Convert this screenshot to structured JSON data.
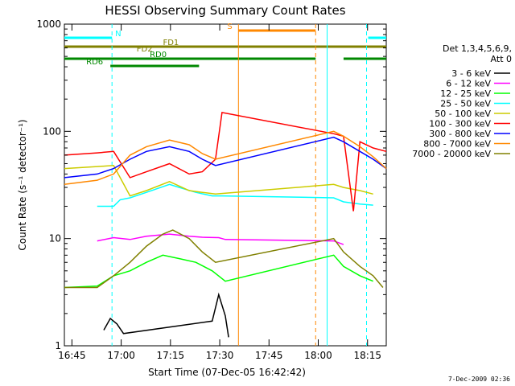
{
  "footer": {
    "timestamp": "7-Dec-2009 02:36"
  },
  "chart_data": {
    "type": "line",
    "title": "HESSI Observing Summary Count Rates",
    "xlabel": "Start Time (07-Dec-05 16:42:42)",
    "ylabel": "Count Rate (s⁻¹ detector⁻¹)",
    "x_unit": "minutes after 16:42:42 UT",
    "xlim": [
      0,
      98
    ],
    "ylim": [
      1,
      1000
    ],
    "y_scale": "log",
    "grid": false,
    "x_ticks": [
      {
        "pos": 2.3,
        "label": "16:45"
      },
      {
        "pos": 17.3,
        "label": "17:00"
      },
      {
        "pos": 32.3,
        "label": "17:15"
      },
      {
        "pos": 47.3,
        "label": "17:30"
      },
      {
        "pos": 62.3,
        "label": "17:45"
      },
      {
        "pos": 77.3,
        "label": "18:00"
      },
      {
        "pos": 92.3,
        "label": "18:15"
      }
    ],
    "y_ticks": [
      {
        "pos": 1,
        "label": "1"
      },
      {
        "pos": 10,
        "label": "10"
      },
      {
        "pos": 100,
        "label": "100"
      },
      {
        "pos": 1000,
        "label": "1000"
      }
    ],
    "legend": {
      "placement": "right",
      "title_lines": [
        "Det 1,3,4,5,6,9,",
        "Att 0"
      ]
    },
    "series": [
      {
        "name": "3 - 6 keV",
        "color": "#000000",
        "data": [
          [
            12,
            1.4
          ],
          [
            14,
            1.8
          ],
          [
            16,
            1.6
          ],
          [
            18,
            1.3
          ],
          [
            45,
            1.7
          ],
          [
            47,
            3.0
          ],
          [
            49,
            1.9
          ],
          [
            50,
            1.2
          ]
        ]
      },
      {
        "name": "6 - 12 keV",
        "color": "#ff00ff",
        "data": [
          [
            10,
            9.5
          ],
          [
            15,
            10.2
          ],
          [
            20,
            9.8
          ],
          [
            25,
            10.5
          ],
          [
            32,
            11.0
          ],
          [
            38,
            10.5
          ],
          [
            42,
            10.3
          ],
          [
            47,
            10.2
          ],
          [
            49,
            9.8
          ],
          [
            82,
            9.5
          ],
          [
            85,
            8.8
          ]
        ]
      },
      {
        "name": "12 - 25 keV",
        "color": "#00ff00",
        "data": [
          [
            0,
            3.5
          ],
          [
            10,
            3.6
          ],
          [
            15,
            4.5
          ],
          [
            20,
            5.0
          ],
          [
            25,
            6.0
          ],
          [
            30,
            7.0
          ],
          [
            35,
            6.5
          ],
          [
            40,
            6.0
          ],
          [
            45,
            5.0
          ],
          [
            49,
            4.0
          ],
          [
            82,
            7.0
          ],
          [
            85,
            5.5
          ],
          [
            90,
            4.5
          ],
          [
            94,
            4.0
          ]
        ]
      },
      {
        "name": "25 - 50 keV",
        "color": "#00ffff",
        "data": [
          [
            10,
            20.0
          ],
          [
            15,
            20.0
          ],
          [
            17,
            23.0
          ],
          [
            20,
            24.0
          ],
          [
            25,
            27.0
          ],
          [
            32,
            32.0
          ],
          [
            35,
            30.0
          ],
          [
            40,
            27.0
          ],
          [
            45,
            25.0
          ],
          [
            48,
            25.0
          ],
          [
            82,
            24.0
          ],
          [
            85,
            22.0
          ],
          [
            90,
            21.0
          ],
          [
            94,
            20.5
          ]
        ]
      },
      {
        "name": "50 - 100 keV",
        "color": "#cccc00",
        "data": [
          [
            0,
            45.0
          ],
          [
            10,
            47.0
          ],
          [
            15,
            48.0
          ],
          [
            20,
            25.0
          ],
          [
            25,
            28.0
          ],
          [
            32,
            34.0
          ],
          [
            38,
            28.0
          ],
          [
            42,
            27.0
          ],
          [
            46,
            26.0
          ],
          [
            82,
            32.0
          ],
          [
            85,
            30.0
          ],
          [
            90,
            28.0
          ],
          [
            94,
            26.0
          ]
        ]
      },
      {
        "name": "100 - 300 keV",
        "color": "#ff0000",
        "data": [
          [
            0,
            60.0
          ],
          [
            10,
            63.0
          ],
          [
            15,
            65.0
          ],
          [
            20,
            37.0
          ],
          [
            25,
            42.0
          ],
          [
            32,
            50.0
          ],
          [
            38,
            40.0
          ],
          [
            42,
            42.0
          ],
          [
            46,
            55.0
          ],
          [
            48,
            150.0
          ],
          [
            82,
            95.0
          ],
          [
            85,
            90.0
          ],
          [
            88,
            18.0
          ],
          [
            90,
            80.0
          ],
          [
            94,
            70.0
          ],
          [
            98,
            65.0
          ]
        ]
      },
      {
        "name": "300 - 800 keV",
        "color": "#0000ff",
        "data": [
          [
            0,
            37.0
          ],
          [
            10,
            40.0
          ],
          [
            15,
            45.0
          ],
          [
            20,
            55.0
          ],
          [
            25,
            65.0
          ],
          [
            32,
            72.0
          ],
          [
            38,
            65.0
          ],
          [
            42,
            55.0
          ],
          [
            46,
            48.0
          ],
          [
            82,
            88.0
          ],
          [
            85,
            80.0
          ],
          [
            90,
            65.0
          ],
          [
            94,
            55.0
          ],
          [
            98,
            45.0
          ]
        ]
      },
      {
        "name": "800 - 7000 keV",
        "color": "#ff8800",
        "data": [
          [
            0,
            32.0
          ],
          [
            10,
            35.0
          ],
          [
            15,
            40.0
          ],
          [
            20,
            60.0
          ],
          [
            25,
            72.0
          ],
          [
            32,
            83.0
          ],
          [
            38,
            75.0
          ],
          [
            42,
            62.0
          ],
          [
            46,
            55.0
          ],
          [
            82,
            100.0
          ],
          [
            85,
            90.0
          ],
          [
            90,
            72.0
          ],
          [
            94,
            58.0
          ],
          [
            98,
            45.0
          ]
        ]
      },
      {
        "name": "7000 - 20000 keV",
        "color": "#808000",
        "data": [
          [
            0,
            3.5
          ],
          [
            10,
            3.5
          ],
          [
            15,
            4.5
          ],
          [
            20,
            6.0
          ],
          [
            25,
            8.5
          ],
          [
            30,
            11.0
          ],
          [
            33,
            12.0
          ],
          [
            38,
            10.0
          ],
          [
            42,
            7.5
          ],
          [
            46,
            6.0
          ],
          [
            82,
            10.0
          ],
          [
            85,
            7.5
          ],
          [
            90,
            5.5
          ],
          [
            94,
            4.5
          ],
          [
            97,
            3.5
          ]
        ]
      }
    ],
    "flag_bars": [
      {
        "label": "N",
        "color": "#00ffff",
        "segments": [
          [
            0,
            14.5
          ],
          [
            92.5,
            98
          ]
        ]
      },
      {
        "label": "S",
        "color": "#ff8800",
        "segments": [
          [
            53,
            76.5
          ]
        ]
      },
      {
        "label": "FD1",
        "color": "#808000",
        "segments": [
          [
            0,
            98
          ]
        ]
      },
      {
        "label": "FD2",
        "color": "#808000",
        "segments": []
      },
      {
        "label": "RD0",
        "color": "#008800",
        "segments": [
          [
            0,
            76.5
          ],
          [
            85,
            98
          ]
        ]
      },
      {
        "label": "RD6",
        "color": "#008800",
        "segments": [
          [
            14,
            41
          ]
        ]
      }
    ],
    "markers": [
      {
        "x": 14.5,
        "color": "#00ffff",
        "style": "dashed"
      },
      {
        "x": 53.0,
        "color": "#ff8800",
        "style": "solid"
      },
      {
        "x": 76.5,
        "color": "#ff8800",
        "style": "dashed"
      },
      {
        "x": 80.0,
        "color": "#00ffff",
        "style": "solid"
      },
      {
        "x": 92.0,
        "color": "#00ffff",
        "style": "dashed"
      }
    ]
  }
}
